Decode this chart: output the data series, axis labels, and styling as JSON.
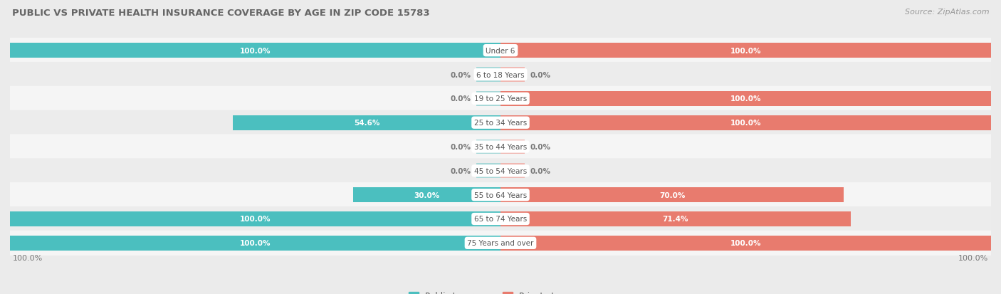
{
  "title": "PUBLIC VS PRIVATE HEALTH INSURANCE COVERAGE BY AGE IN ZIP CODE 15783",
  "source": "Source: ZipAtlas.com",
  "categories": [
    "Under 6",
    "6 to 18 Years",
    "19 to 25 Years",
    "25 to 34 Years",
    "35 to 44 Years",
    "45 to 54 Years",
    "55 to 64 Years",
    "65 to 74 Years",
    "75 Years and over"
  ],
  "public_values": [
    100.0,
    0.0,
    0.0,
    54.6,
    0.0,
    0.0,
    30.0,
    100.0,
    100.0
  ],
  "private_values": [
    100.0,
    0.0,
    100.0,
    100.0,
    0.0,
    0.0,
    70.0,
    71.4,
    100.0
  ],
  "public_color": "#4BBFBF",
  "public_color_faint": "#A8D8D8",
  "private_color": "#E87B6E",
  "private_color_faint": "#F0B8B2",
  "bg_color": "#EBEBEB",
  "row_bg_color": "#F5F5F5",
  "row_bg_alt_color": "#ECECEC",
  "title_color": "#666666",
  "label_color_white": "#FFFFFF",
  "label_color_dark": "#777777",
  "category_label_color": "#555555",
  "bar_height": 0.62,
  "xlim": 100.0,
  "figsize": [
    14.06,
    4.14
  ],
  "dpi": 100,
  "zero_stub": 5.0,
  "legend_labels": [
    "Public Insurance",
    "Private Insurance"
  ]
}
